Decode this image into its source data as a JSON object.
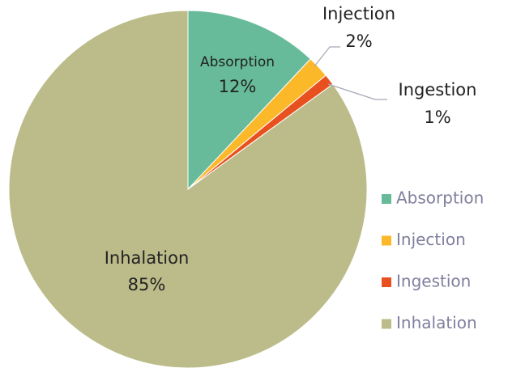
{
  "chart_data": {
    "type": "pie",
    "categories": [
      "Absorption",
      "Injection",
      "Ingestion",
      "Inhalation"
    ],
    "values": [
      12,
      2,
      1,
      85
    ],
    "value_labels": [
      "12%",
      "2%",
      "1%",
      "85%"
    ],
    "colors": [
      "#67bb9b",
      "#fbb829",
      "#e8511f",
      "#bcbc8a"
    ],
    "legend": "right"
  }
}
